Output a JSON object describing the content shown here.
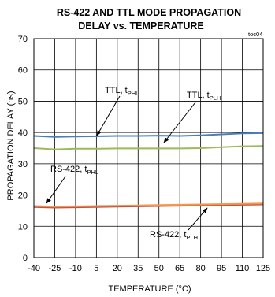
{
  "chart_data": {
    "type": "line",
    "title_line1": "RS-422 AND TTL MODE PROPAGATION",
    "title_line2": "DELAY vs. TEMPERATURE",
    "tag": "toc04",
    "xlabel": "TEMPERATURE (°C)",
    "ylabel": "PROPAGATION DELAY (ns)",
    "xlim": [
      -40,
      125
    ],
    "ylim": [
      0,
      70
    ],
    "x_ticks": [
      -40,
      -25,
      -10,
      5,
      20,
      35,
      50,
      65,
      80,
      95,
      110,
      125
    ],
    "y_ticks": [
      0,
      10,
      20,
      30,
      40,
      50,
      60,
      70
    ],
    "grid": true,
    "x": [
      -40,
      -25,
      -10,
      5,
      20,
      35,
      50,
      65,
      80,
      95,
      110,
      125
    ],
    "series": [
      {
        "name": "TTL, tPHL",
        "color": "#4a7ebb",
        "values": [
          38.9,
          38.6,
          38.7,
          38.8,
          38.9,
          38.9,
          39.0,
          38.9,
          39.1,
          39.4,
          39.7,
          39.8
        ]
      },
      {
        "name": "TTL, tPLH",
        "color": "#9bbb59",
        "values": [
          35.0,
          34.6,
          34.8,
          34.8,
          34.9,
          34.9,
          34.9,
          34.9,
          35.0,
          35.3,
          35.6,
          35.7
        ]
      },
      {
        "name": "RS-422, tPHL",
        "color": "#c0504d",
        "values": [
          16.2,
          16.0,
          16.1,
          16.2,
          16.3,
          16.4,
          16.5,
          16.6,
          16.7,
          16.8,
          16.9,
          17.0
        ]
      },
      {
        "name": "RS-422, tPLH",
        "color": "#f79646",
        "values": [
          16.5,
          16.3,
          16.4,
          16.5,
          16.6,
          16.7,
          16.8,
          16.9,
          17.0,
          17.1,
          17.2,
          17.3
        ]
      }
    ],
    "annotations": [
      {
        "main": "TTL, t",
        "sub": "PHL"
      },
      {
        "main": "TTL, t",
        "sub": "PLH"
      },
      {
        "main": "RS-422, t",
        "sub": "PHL"
      },
      {
        "main": "RS-422, t",
        "sub": "PLH"
      }
    ]
  }
}
